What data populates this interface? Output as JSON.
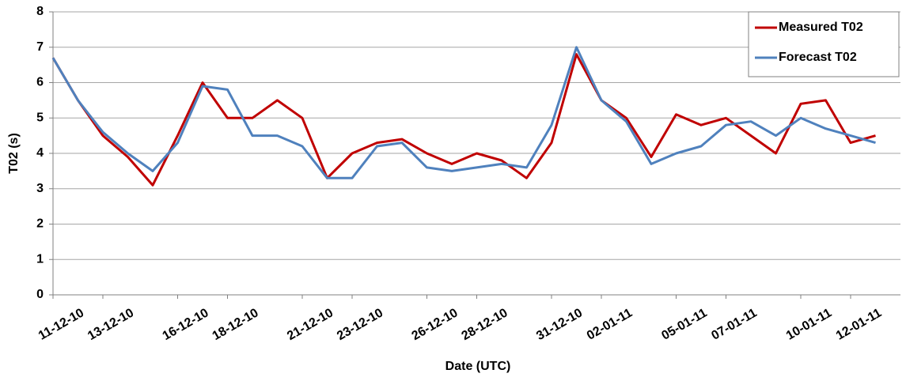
{
  "chart_data": {
    "type": "line",
    "y_label": "T02 (s)",
    "x_label": "Date (UTC)",
    "x": [
      "11-12-10",
      "12-12-10",
      "13-12-10",
      "14-12-10",
      "15-12-10",
      "16-12-10",
      "17-12-10",
      "18-12-10",
      "19-12-10",
      "20-12-10",
      "21-12-10",
      "22-12-10",
      "23-12-10",
      "24-12-10",
      "25-12-10",
      "26-12-10",
      "27-12-10",
      "28-12-10",
      "29-12-10",
      "30-12-10",
      "31-12-10",
      "01-01-11",
      "02-01-11",
      "03-01-11",
      "04-01-11",
      "05-01-11",
      "06-01-11",
      "07-01-11",
      "08-01-11",
      "09-01-11",
      "10-01-11",
      "11-01-11",
      "12-01-11",
      "13-01-11"
    ],
    "series": [
      {
        "name": "Measured T02",
        "color": "#c00000",
        "values": [
          6.7,
          5.5,
          4.5,
          3.9,
          3.1,
          4.5,
          6.0,
          5.0,
          5.0,
          5.5,
          5.0,
          3.3,
          4.0,
          4.3,
          4.4,
          4.0,
          3.7,
          4.0,
          3.8,
          3.3,
          4.3,
          6.8,
          5.5,
          5.0,
          3.9,
          5.1,
          4.8,
          5.0,
          4.5,
          4.0,
          5.4,
          5.5,
          4.3,
          4.5
        ]
      },
      {
        "name": "Forecast T02",
        "color": "#4f81bd",
        "values": [
          6.7,
          5.5,
          4.6,
          4.0,
          3.5,
          4.3,
          5.9,
          5.8,
          4.5,
          4.5,
          4.2,
          3.3,
          3.3,
          4.2,
          4.3,
          3.6,
          3.5,
          3.6,
          3.7,
          3.6,
          4.8,
          7.0,
          5.5,
          4.9,
          3.7,
          4.0,
          4.2,
          4.8,
          4.9,
          4.5,
          5.0,
          4.7,
          4.5,
          4.3
        ]
      }
    ],
    "xlim": [
      "11-12-10",
      "14-01-11"
    ],
    "xticks": [
      "11-12-10",
      "13-12-10",
      "16-12-10",
      "18-12-10",
      "21-12-10",
      "23-12-10",
      "26-12-10",
      "28-12-10",
      "31-12-10",
      "02-01-11",
      "05-01-11",
      "07-01-11",
      "10-01-11",
      "12-01-11"
    ],
    "ylim": [
      0,
      8
    ],
    "yticks": [
      0,
      1,
      2,
      3,
      4,
      5,
      6,
      7,
      8
    ],
    "grid": true,
    "legend": "top-right"
  }
}
